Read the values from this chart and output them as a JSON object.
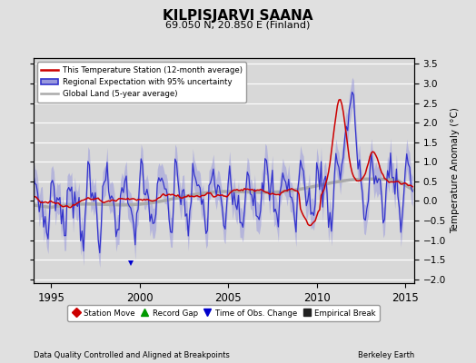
{
  "title": "KILPISJARVI SAANA",
  "subtitle": "69.050 N, 20.850 E (Finland)",
  "xlabel_left": "Data Quality Controlled and Aligned at Breakpoints",
  "xlabel_right": "Berkeley Earth",
  "ylabel": "Temperature Anomaly (°C)",
  "xlim": [
    1994.0,
    2015.5
  ],
  "ylim": [
    -2.1,
    3.65
  ],
  "yticks": [
    -2,
    -1.5,
    -1,
    -0.5,
    0,
    0.5,
    1,
    1.5,
    2,
    2.5,
    3,
    3.5
  ],
  "xticks": [
    1995,
    2000,
    2005,
    2010,
    2015
  ],
  "bg_color": "#e0e0e0",
  "plot_bg_color": "#d8d8d8",
  "regional_color": "#3333cc",
  "regional_fill_color": "#9999dd",
  "station_color": "#cc0000",
  "global_color": "#aaaaaa",
  "legend_items": [
    "This Temperature Station (12-month average)",
    "Regional Expectation with 95% uncertainty",
    "Global Land (5-year average)"
  ],
  "marker_legend": [
    {
      "label": "Station Move",
      "color": "#cc0000",
      "marker": "D"
    },
    {
      "label": "Record Gap",
      "color": "#009900",
      "marker": "^"
    },
    {
      "label": "Time of Obs. Change",
      "color": "#0000cc",
      "marker": "v"
    },
    {
      "label": "Empirical Break",
      "color": "#222222",
      "marker": "s"
    }
  ],
  "obs_change_x": 1999.5,
  "obs_change_y": -1.6
}
